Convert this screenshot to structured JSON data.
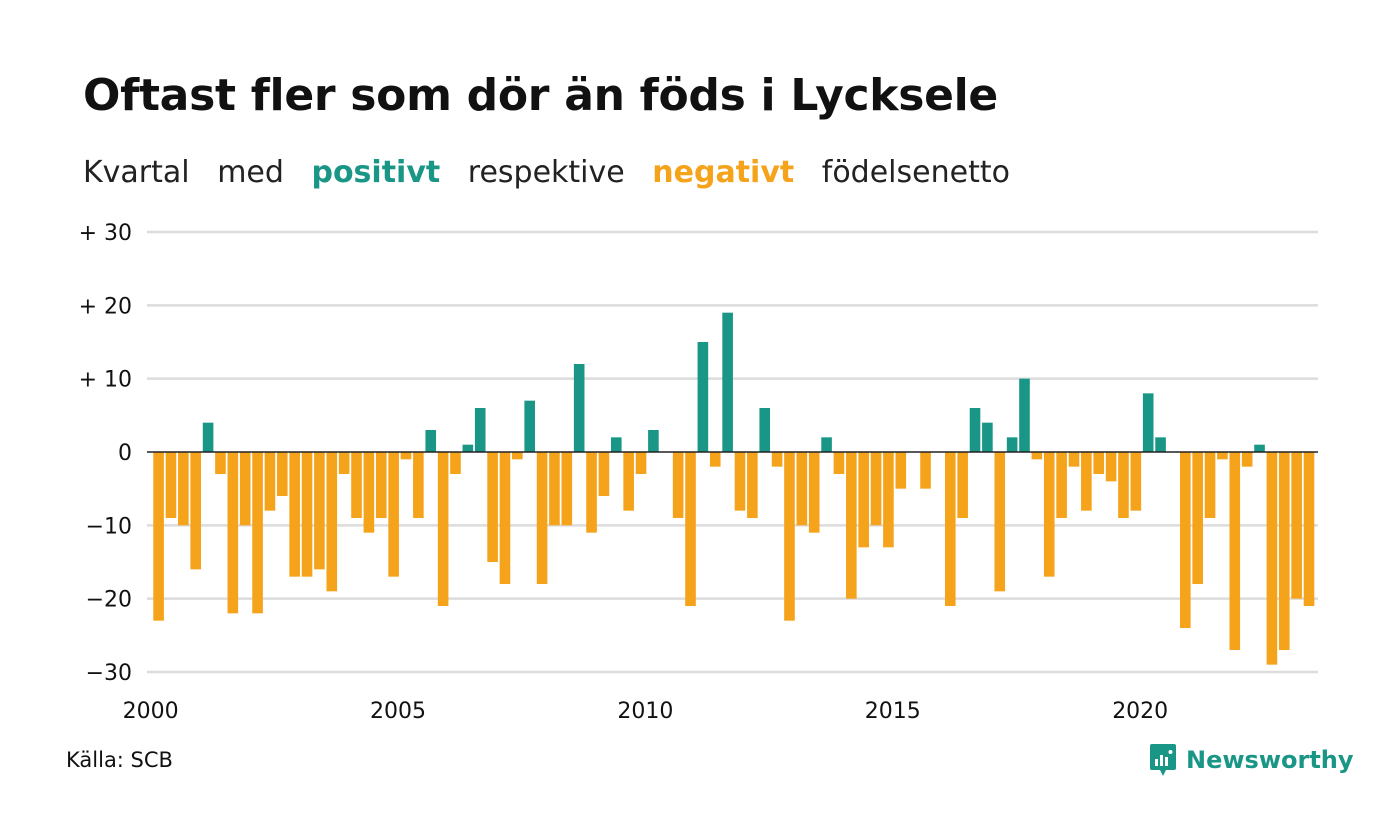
{
  "title": "Oftast fler som dör än föds i Lycksele",
  "subtitle": {
    "part1": "Kvartal",
    "part2": "med",
    "positive": "positivt",
    "part3": "respektive",
    "negative": "negativt",
    "part4": "födelsenetto"
  },
  "source": "Källa: SCB",
  "brand": "Newsworthy",
  "colors": {
    "positive": "#1a9687",
    "negative": "#f5a31a",
    "grid": "#dcdcdc",
    "zero_line": "#222222",
    "text": "#111111"
  },
  "chart_data": {
    "type": "bar",
    "x_start": "2000 Q1",
    "period": "quarter",
    "xtick_labels": [
      "2000",
      "2005",
      "2010",
      "2015",
      "2020"
    ],
    "ytick_labels": [
      "+ 30",
      "+ 20",
      "+ 10",
      "0",
      "−10",
      "−20",
      "−30"
    ],
    "ylim": [
      -30,
      30
    ],
    "grid": true,
    "values": [
      -23,
      -9,
      -10,
      -16,
      4,
      -3,
      -22,
      -10,
      -22,
      -8,
      -6,
      -17,
      -17,
      -16,
      -19,
      -3,
      -9,
      -11,
      -9,
      -17,
      -1,
      -9,
      3,
      -21,
      -3,
      1,
      6,
      -15,
      -18,
      -1,
      7,
      -18,
      -10,
      -10,
      12,
      -11,
      -6,
      2,
      -8,
      -3,
      3,
      0,
      -9,
      -21,
      15,
      -2,
      19,
      -8,
      -9,
      6,
      -2,
      -23,
      -10,
      -11,
      2,
      -3,
      -20,
      -13,
      -10,
      -13,
      -5,
      0,
      -5,
      0,
      -21,
      -9,
      6,
      4,
      -19,
      2,
      10,
      -1,
      -17,
      -9,
      -2,
      -8,
      -3,
      -4,
      -9,
      -8,
      8,
      2,
      0,
      -24,
      -18,
      -9,
      -1,
      -27,
      -2,
      1,
      -29,
      -27,
      -20,
      -21
    ]
  }
}
